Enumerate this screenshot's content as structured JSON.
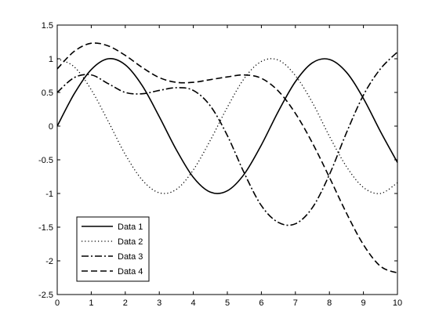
{
  "chart_data": {
    "type": "line",
    "title": "",
    "xlabel": "",
    "ylabel": "",
    "xlim": [
      0,
      10
    ],
    "ylim": [
      -2.5,
      1.5
    ],
    "x_ticks": [
      0,
      1,
      2,
      3,
      4,
      5,
      6,
      7,
      8,
      9,
      10
    ],
    "y_ticks": [
      -2.5,
      -2,
      -1.5,
      -1,
      -0.5,
      0,
      0.5,
      1,
      1.5
    ],
    "x_tick_labels": [
      "0",
      "1",
      "2",
      "3",
      "4",
      "5",
      "6",
      "7",
      "8",
      "9",
      "10"
    ],
    "y_tick_labels": [
      "-2.5",
      "-2",
      "-1.5",
      "-1",
      "-0.5",
      "0",
      "0.5",
      "1",
      "1.5"
    ],
    "grid": false,
    "legend_position": "bottom-left",
    "x": [
      0,
      0.5,
      1,
      1.5,
      2,
      2.5,
      3,
      3.5,
      4,
      4.5,
      5,
      5.5,
      6,
      6.5,
      7,
      7.5,
      8,
      8.5,
      9,
      9.5,
      10
    ],
    "series": [
      {
        "name": "Data 1",
        "style": "solid",
        "color": "#000000",
        "values": [
          0,
          0.48,
          0.84,
          1.0,
          0.91,
          0.6,
          0.14,
          -0.35,
          -0.76,
          -0.98,
          -0.96,
          -0.71,
          -0.28,
          0.22,
          0.66,
          0.94,
          0.99,
          0.8,
          0.41,
          -0.08,
          -0.54
        ]
      },
      {
        "name": "Data 2",
        "style": "dotted",
        "color": "#000000",
        "values": [
          1.0,
          0.88,
          0.54,
          0.07,
          -0.42,
          -0.8,
          -0.99,
          -0.94,
          -0.65,
          -0.21,
          0.28,
          0.71,
          0.96,
          0.98,
          0.75,
          0.35,
          -0.15,
          -0.6,
          -0.91,
          -1.0,
          -0.84
        ]
      },
      {
        "name": "Data 3",
        "style": "dashdot",
        "color": "#000000",
        "values": [
          0.5,
          0.72,
          0.76,
          0.63,
          0.5,
          0.48,
          0.53,
          0.57,
          0.53,
          0.3,
          -0.14,
          -0.7,
          -1.18,
          -1.43,
          -1.45,
          -1.21,
          -0.72,
          -0.1,
          0.46,
          0.85,
          1.1
        ]
      },
      {
        "name": "Data 4",
        "style": "dashed",
        "color": "#000000",
        "values": [
          0.85,
          1.11,
          1.23,
          1.19,
          1.05,
          0.87,
          0.72,
          0.65,
          0.65,
          0.69,
          0.73,
          0.76,
          0.71,
          0.52,
          0.19,
          -0.25,
          -0.76,
          -1.29,
          -1.76,
          -2.08,
          -2.18
        ]
      }
    ]
  }
}
